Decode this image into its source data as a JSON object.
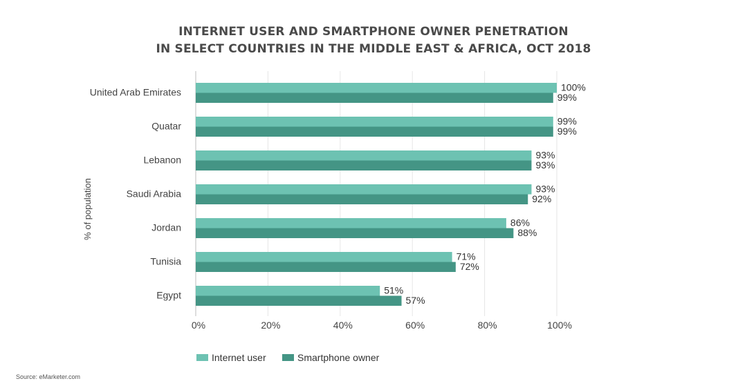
{
  "chart_data": {
    "type": "bar",
    "orientation": "horizontal",
    "title_lines": [
      "INTERNET USER AND SMARTPHONE OWNER PENETRATION",
      "IN SELECT COUNTRIES IN THE MIDDLE EAST & AFRICA, OCT 2018"
    ],
    "ylabel": "% of population",
    "categories": [
      "United Arab Emirates",
      "Quatar",
      "Lebanon",
      "Saudi Arabia",
      "Jordan",
      "Tunisia",
      "Egypt"
    ],
    "series": [
      {
        "name": "Internet user",
        "color": "#6dc2b2",
        "values": [
          100,
          99,
          93,
          93,
          86,
          71,
          51
        ]
      },
      {
        "name": "Smartphone owner",
        "color": "#449585",
        "values": [
          99,
          99,
          93,
          92,
          88,
          72,
          57
        ]
      }
    ],
    "value_labels": [
      [
        "100%",
        "99%",
        "93%",
        "93%",
        "86%",
        "71%",
        "51%"
      ],
      [
        "99%",
        "99%",
        "93%",
        "92%",
        "88%",
        "72%",
        "57%"
      ]
    ],
    "xlim": [
      0,
      100
    ],
    "xticks": [
      0,
      20,
      40,
      60,
      80,
      100
    ],
    "xtick_labels": [
      "0%",
      "20%",
      "40%",
      "60%",
      "80%",
      "100%"
    ],
    "grid": true,
    "legend_position": "bottom-center"
  },
  "source": "Source: eMarketer.com"
}
